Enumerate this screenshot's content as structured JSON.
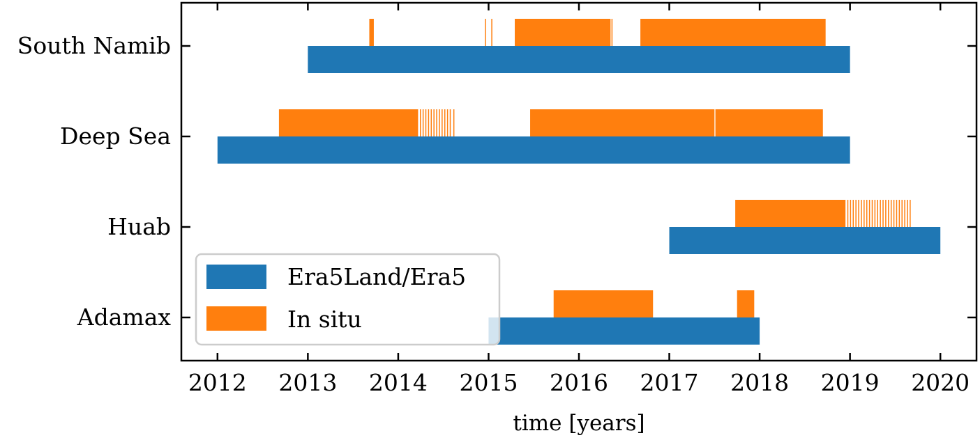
{
  "chart_data": {
    "type": "bar",
    "orientation": "horizontal",
    "xlabel": "time [years]",
    "xlim": [
      2011.6,
      2020.4
    ],
    "x_ticks": [
      2012,
      2013,
      2014,
      2015,
      2016,
      2017,
      2018,
      2019,
      2020
    ],
    "categories": [
      "Adamax",
      "Huab",
      "Deep Sea",
      "South Namib"
    ],
    "legend": {
      "placement": "lower-left",
      "entries": [
        "Era5Land/Era5",
        "In situ"
      ]
    },
    "series": [
      {
        "name": "Era5Land/Era5",
        "color": "#1f77b4",
        "intervals": {
          "South Namib": [
            [
              2013.0,
              2019.0
            ]
          ],
          "Deep Sea": [
            [
              2012.0,
              2019.0
            ]
          ],
          "Huab": [
            [
              2017.0,
              2020.0
            ]
          ],
          "Adamax": [
            [
              2015.0,
              2018.0
            ]
          ]
        }
      },
      {
        "name": "In situ",
        "color": "#ff7f0e",
        "intervals": {
          "South Namib": [
            [
              2013.68,
              2013.73
            ],
            [
              2014.96,
              2014.97
            ],
            [
              2015.03,
              2015.04
            ],
            [
              2015.29,
              2016.35
            ],
            [
              2016.36,
              2016.37
            ],
            [
              2016.68,
              2018.73
            ]
          ],
          "Deep Sea": [
            [
              2012.68,
              2014.22
            ],
            [
              2014.24,
              2014.25
            ],
            [
              2014.27,
              2014.28
            ],
            [
              2014.3,
              2014.31
            ],
            [
              2014.33,
              2014.34
            ],
            [
              2014.36,
              2014.37
            ],
            [
              2014.39,
              2014.4
            ],
            [
              2014.42,
              2014.43
            ],
            [
              2014.45,
              2014.46
            ],
            [
              2014.48,
              2014.49
            ],
            [
              2014.51,
              2014.52
            ],
            [
              2014.54,
              2014.55
            ],
            [
              2014.57,
              2014.58
            ],
            [
              2014.61,
              2014.62
            ],
            [
              2015.46,
              2017.5
            ],
            [
              2017.51,
              2018.7
            ]
          ],
          "Huab": [
            [
              2017.73,
              2018.95
            ],
            [
              2018.97,
              2018.98
            ],
            [
              2019.0,
              2019.01
            ],
            [
              2019.03,
              2019.04
            ],
            [
              2019.06,
              2019.07
            ],
            [
              2019.09,
              2019.1
            ],
            [
              2019.12,
              2019.13
            ],
            [
              2019.15,
              2019.16
            ],
            [
              2019.18,
              2019.19
            ],
            [
              2019.21,
              2019.22
            ],
            [
              2019.24,
              2019.25
            ],
            [
              2019.27,
              2019.28
            ],
            [
              2019.3,
              2019.31
            ],
            [
              2019.33,
              2019.34
            ],
            [
              2019.36,
              2019.37
            ],
            [
              2019.39,
              2019.4
            ],
            [
              2019.42,
              2019.43
            ],
            [
              2019.45,
              2019.46
            ],
            [
              2019.48,
              2019.49
            ],
            [
              2019.51,
              2019.52
            ],
            [
              2019.54,
              2019.55
            ],
            [
              2019.57,
              2019.58
            ],
            [
              2019.6,
              2019.61
            ],
            [
              2019.63,
              2019.64
            ],
            [
              2019.66,
              2019.67
            ]
          ],
          "Adamax": [
            [
              2015.72,
              2016.82
            ],
            [
              2017.75,
              2017.94
            ]
          ]
        }
      }
    ]
  }
}
